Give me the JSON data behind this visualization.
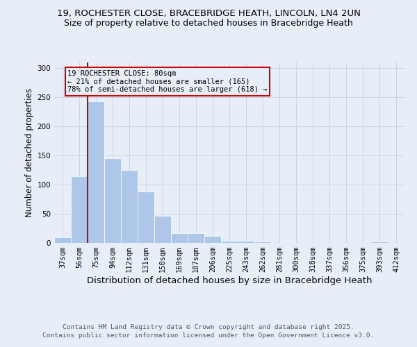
{
  "title_line1": "19, ROCHESTER CLOSE, BRACEBRIDGE HEATH, LINCOLN, LN4 2UN",
  "title_line2": "Size of property relative to detached houses in Bracebridge Heath",
  "xlabel": "Distribution of detached houses by size in Bracebridge Heath",
  "ylabel": "Number of detached properties",
  "categories": [
    "37sqm",
    "56sqm",
    "75sqm",
    "94sqm",
    "112sqm",
    "131sqm",
    "150sqm",
    "169sqm",
    "187sqm",
    "206sqm",
    "225sqm",
    "243sqm",
    "262sqm",
    "281sqm",
    "300sqm",
    "318sqm",
    "337sqm",
    "356sqm",
    "375sqm",
    "393sqm",
    "412sqm"
  ],
  "values": [
    10,
    115,
    243,
    145,
    125,
    88,
    47,
    17,
    17,
    12,
    3,
    3,
    2,
    0,
    0,
    0,
    0,
    0,
    0,
    2,
    0
  ],
  "bar_color": "#aec6e8",
  "grid_color": "#c8d4e8",
  "background_color": "#e8eef8",
  "vline_x_index": 2,
  "vline_color": "#cc0000",
  "annotation_line1": "19 ROCHESTER CLOSE: 80sqm",
  "annotation_line2": "← 21% of detached houses are smaller (165)",
  "annotation_line3": "78% of semi-detached houses are larger (618) →",
  "annotation_box_color": "#cc0000",
  "ylim": [
    0,
    310
  ],
  "yticks": [
    0,
    50,
    100,
    150,
    200,
    250,
    300
  ],
  "footer_line1": "Contains HM Land Registry data © Crown copyright and database right 2025.",
  "footer_line2": "Contains public sector information licensed under the Open Government Licence v3.0.",
  "title_fontsize": 9.5,
  "subtitle_fontsize": 9,
  "xlabel_fontsize": 9.5,
  "ylabel_fontsize": 8.5,
  "tick_fontsize": 7.5,
  "annot_fontsize": 7.5,
  "footer_fontsize": 6.8
}
